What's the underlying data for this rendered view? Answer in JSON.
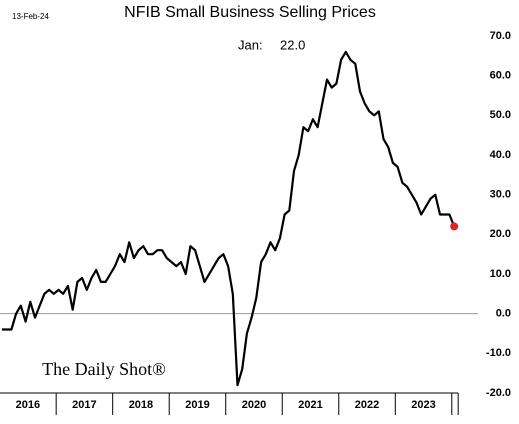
{
  "chart_data": {
    "type": "line",
    "title": "NFIB Small Business Selling Prices",
    "date_note": "13-Feb-24",
    "last_note": "Jan:",
    "watermark": "The Daily Shot®",
    "categories": [
      null,
      null,
      null,
      null,
      null,
      "2016",
      null,
      null,
      null,
      null,
      null,
      null,
      null,
      null,
      null,
      null,
      null,
      "2017",
      null,
      null,
      null,
      null,
      null,
      null,
      null,
      null,
      null,
      null,
      null,
      "2018",
      null,
      null,
      null,
      null,
      null,
      null,
      null,
      null,
      null,
      null,
      null,
      "2019",
      null,
      null,
      null,
      null,
      null,
      null,
      null,
      null,
      null,
      null,
      null,
      "2020",
      null,
      null,
      null,
      null,
      null,
      null,
      null,
      null,
      null,
      null,
      null,
      "2021",
      null,
      null,
      null,
      null,
      null,
      null,
      null,
      null,
      null,
      null,
      null,
      "2022",
      null,
      null,
      null,
      null,
      null,
      null,
      null,
      null,
      null,
      null,
      null,
      "2023",
      null,
      null,
      null,
      null,
      null,
      null,
      null
    ],
    "series": [
      {
        "name": "NFIB Selling Prices",
        "color": "#000000",
        "highlight_color": "#e8202a",
        "values": [
          -4,
          -4,
          -4,
          0,
          2,
          -2,
          3,
          -1,
          2,
          5,
          6,
          5,
          6,
          5,
          7,
          1,
          8,
          9,
          6,
          9,
          11,
          8,
          8,
          10,
          12,
          15,
          13,
          18,
          14,
          16,
          17,
          15,
          15,
          16,
          16,
          14,
          13,
          12,
          13,
          10,
          17,
          16,
          12,
          8,
          10,
          12,
          14,
          15,
          12,
          5,
          -18,
          -14,
          -5,
          -1,
          4,
          13,
          15,
          18,
          16,
          19,
          25,
          26,
          36,
          40,
          47,
          46,
          49,
          47,
          53,
          59,
          57,
          58,
          64,
          66,
          64,
          63,
          56,
          53,
          51,
          50,
          51,
          44,
          42,
          38,
          37,
          33,
          32,
          30,
          28,
          25,
          27,
          29,
          30,
          25,
          25,
          25,
          22
        ],
        "value_labels": [
          null,
          null,
          null,
          null,
          null,
          null,
          null,
          null,
          null,
          null,
          null,
          null,
          null,
          null,
          null,
          null,
          null,
          null,
          null,
          null,
          null,
          null,
          null,
          null,
          null,
          null,
          null,
          null,
          null,
          null,
          null,
          null,
          null,
          null,
          null,
          null,
          null,
          null,
          null,
          null,
          null,
          null,
          null,
          null,
          null,
          null,
          null,
          null,
          null,
          null,
          null,
          null,
          null,
          null,
          null,
          null,
          null,
          null,
          null,
          null,
          null,
          null,
          null,
          null,
          null,
          null,
          null,
          null,
          null,
          null,
          null,
          null,
          null,
          null,
          null,
          null,
          null,
          null,
          null,
          null,
          null,
          null,
          null,
          null,
          null,
          null,
          null,
          null,
          null,
          null,
          null,
          null,
          null,
          null,
          null,
          null,
          "22.0"
        ]
      }
    ],
    "ylim": [
      -20,
      70
    ],
    "yticks": [
      {
        "value": -20,
        "label": "-20.0"
      },
      {
        "value": -10,
        "label": "-10.0"
      },
      {
        "value": 0,
        "label": "0.0"
      },
      {
        "value": 10,
        "label": "10.0"
      },
      {
        "value": 20,
        "label": "20.0"
      },
      {
        "value": 30,
        "label": "30.0"
      },
      {
        "value": 40,
        "label": "40.0"
      },
      {
        "value": 50,
        "label": "50.0"
      },
      {
        "value": 60,
        "label": "60.0"
      },
      {
        "value": 70,
        "label": "70.0"
      }
    ],
    "grid": false
  }
}
